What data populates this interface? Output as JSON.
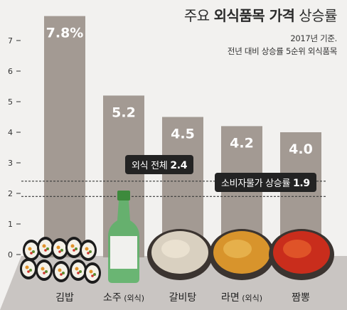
{
  "title_normal_1": "주요 ",
  "title_bold": "외식품목 가격",
  "title_normal_2": " 상승률",
  "subtitle_1": "2017년 기준.",
  "subtitle_2": "전년 대비 상승률 5순위 외식품목",
  "colors": {
    "background": "#f2f1ef",
    "bar": "#a39a93",
    "bar_label": "#ffffff",
    "callout_bg": "#232323",
    "axis_text": "#333333",
    "floor": "#c9c5c2"
  },
  "chart_data": {
    "type": "bar",
    "categories": [
      "김밥",
      "소주",
      "갈비탕",
      "라면",
      "짬뽕"
    ],
    "category_notes": [
      "",
      "(외식)",
      "",
      "(외식)",
      ""
    ],
    "values": [
      7.8,
      5.2,
      4.5,
      4.2,
      4.0
    ],
    "value_labels": [
      "7.8%",
      "5.2",
      "4.5",
      "4.2",
      "4.0"
    ],
    "yticks": [
      0,
      1,
      2,
      3,
      4,
      5,
      6,
      7
    ],
    "ylim": [
      0,
      8
    ],
    "reference_lines": [
      {
        "label": "외식 전체",
        "value": 2.4,
        "value_label": "2.4"
      },
      {
        "label": "소비자물가 상승률",
        "value": 1.9,
        "value_label": "1.9"
      }
    ],
    "grid": false
  }
}
